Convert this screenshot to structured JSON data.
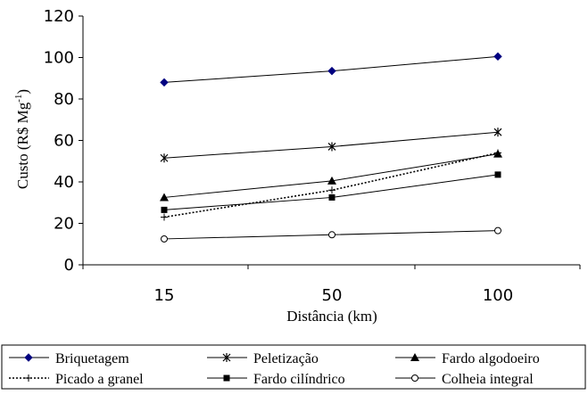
{
  "chart_data": {
    "type": "line",
    "xlabel": "Distância (km)",
    "ylabel": "Custo (R$ Mg",
    "ylabel_sup": "-1",
    "ylabel_close": ")",
    "categories": [
      "15",
      "50",
      "100"
    ],
    "ylim": [
      0,
      120
    ],
    "yticks": [
      "0",
      "20",
      "40",
      "60",
      "80",
      "100",
      "120"
    ],
    "grid": false,
    "legend_position": "bottom",
    "series": [
      {
        "name": "Briquetagem",
        "marker": "diamond-filled",
        "line": "solid",
        "values": [
          88,
          93.5,
          100.5
        ]
      },
      {
        "name": "Peletização",
        "marker": "star",
        "line": "solid",
        "values": [
          51.5,
          57,
          64
        ]
      },
      {
        "name": "Fardo algodoeiro",
        "marker": "triangle-filled",
        "line": "solid",
        "values": [
          32.5,
          40.5,
          53.5
        ]
      },
      {
        "name": "Picado a granel",
        "marker": "plus",
        "line": "dotted",
        "values": [
          23,
          36,
          54
        ]
      },
      {
        "name": "Fardo cilíndrico",
        "marker": "square-filled",
        "line": "solid",
        "values": [
          26.5,
          32.5,
          43.5
        ]
      },
      {
        "name": "Colheia integral",
        "marker": "circle-open",
        "line": "solid",
        "values": [
          12.5,
          14.5,
          16.5
        ]
      }
    ],
    "colors": {
      "line": "#000000",
      "marker": "#000000",
      "diamond": "#000080"
    }
  }
}
